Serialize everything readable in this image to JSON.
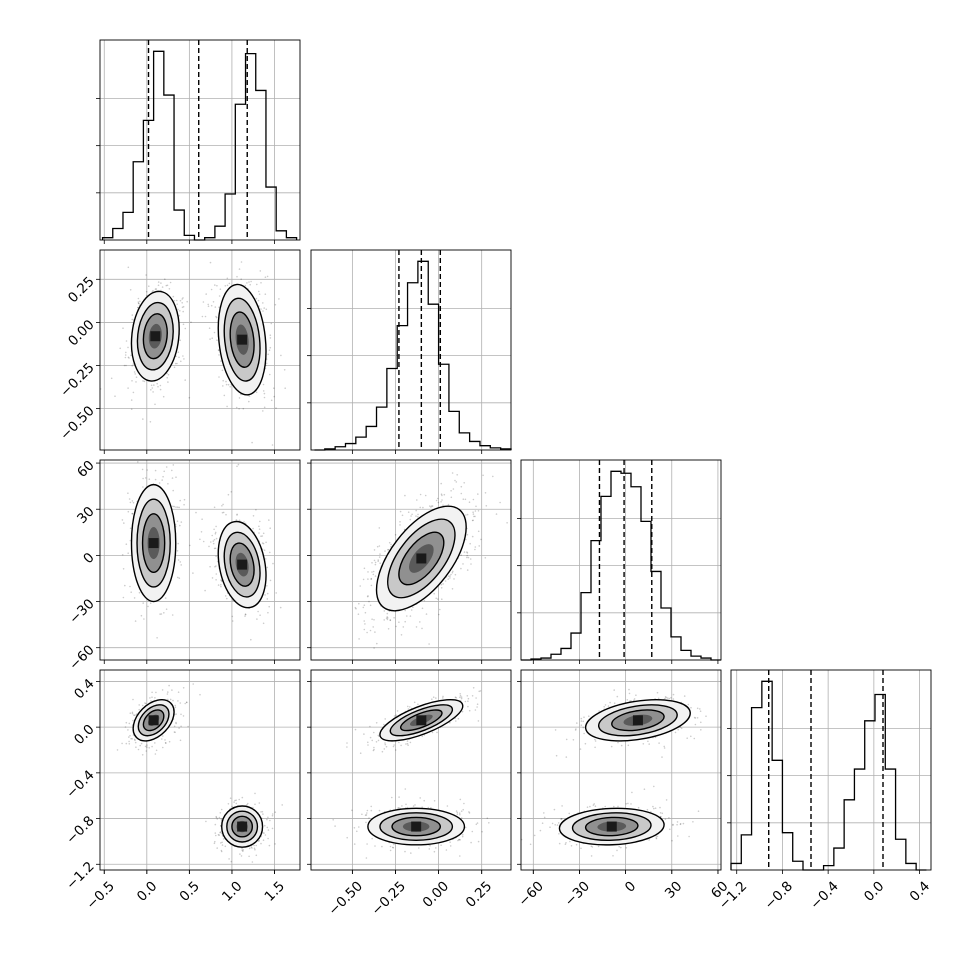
{
  "chart_data": {
    "type": "corner",
    "grid": true,
    "parameters": [
      {
        "range": [
          -0.55,
          1.8
        ],
        "ticks": [
          "-0.5",
          "0.0",
          "0.5",
          "1.0",
          "1.5"
        ],
        "tick_values": [
          -0.5,
          0.0,
          0.5,
          1.0,
          1.5
        ],
        "quantiles": [
          0.02,
          0.61,
          1.18
        ]
      },
      {
        "range": [
          -0.74,
          0.42
        ],
        "ticks": [
          "-0.50",
          "-0.25",
          "0.00",
          "0.25"
        ],
        "tick_values": [
          -0.5,
          -0.25,
          0.0,
          0.25
        ],
        "quantiles": [
          -0.23,
          -0.1,
          0.01
        ]
      },
      {
        "range": [
          -68,
          62
        ],
        "ticks": [
          "-60",
          "-30",
          "0",
          "30",
          "60"
        ],
        "tick_values": [
          -60,
          -30,
          0,
          30,
          60
        ],
        "quantiles": [
          -17,
          -1,
          17
        ]
      },
      {
        "range": [
          -1.25,
          0.5
        ],
        "ticks": [
          "-1.2",
          "-0.8",
          "-0.4",
          "0.0",
          "0.4"
        ],
        "tick_values": [
          -1.2,
          -0.8,
          -0.4,
          0.0,
          0.4
        ],
        "quantiles": [
          -0.92,
          -0.55,
          0.08
        ]
      }
    ],
    "histograms": [
      {
        "bins": [
          -0.52,
          -0.4,
          -0.28,
          -0.16,
          -0.04,
          0.08,
          0.2,
          0.32,
          0.44,
          0.56,
          0.68,
          0.8,
          0.92,
          1.04,
          1.16,
          1.28,
          1.4,
          1.52,
          1.64,
          1.76
        ],
        "counts": [
          0.01,
          0.05,
          0.12,
          0.34,
          0.52,
          0.82,
          0.63,
          0.13,
          0.02,
          0.0,
          0.01,
          0.06,
          0.2,
          0.59,
          0.81,
          0.65,
          0.23,
          0.04,
          0.01
        ]
      },
      {
        "bins": [
          -0.72,
          -0.66,
          -0.6,
          -0.54,
          -0.48,
          -0.42,
          -0.36,
          -0.3,
          -0.24,
          -0.18,
          -0.12,
          -0.06,
          0.0,
          0.06,
          0.12,
          0.18,
          0.24,
          0.3,
          0.36,
          0.42
        ],
        "counts": [
          0.0,
          0.005,
          0.015,
          0.03,
          0.06,
          0.11,
          0.2,
          0.38,
          0.58,
          0.78,
          0.88,
          0.68,
          0.4,
          0.18,
          0.08,
          0.04,
          0.02,
          0.01,
          0.005
        ]
      },
      {
        "bins": [
          -68,
          -61.5,
          -55,
          -48.5,
          -42,
          -35.5,
          -29,
          -22.5,
          -16,
          -9.5,
          -3,
          3.5,
          10,
          16.5,
          23,
          29.5,
          36,
          42.5,
          49,
          55.5,
          62
        ],
        "counts": [
          0.0,
          0.005,
          0.01,
          0.03,
          0.06,
          0.14,
          0.35,
          0.62,
          0.85,
          0.98,
          0.97,
          0.9,
          0.72,
          0.46,
          0.27,
          0.12,
          0.05,
          0.02,
          0.01,
          0.0
        ]
      },
      {
        "bins": [
          -1.25,
          -1.16,
          -1.07,
          -0.98,
          -0.89,
          -0.8,
          -0.71,
          -0.62,
          -0.53,
          -0.44,
          -0.35,
          -0.26,
          -0.17,
          -0.08,
          0.01,
          0.1,
          0.19,
          0.28,
          0.37,
          0.46
        ],
        "counts": [
          0.03,
          0.16,
          0.74,
          0.86,
          0.5,
          0.17,
          0.04,
          0.0,
          0.0,
          0.02,
          0.1,
          0.32,
          0.46,
          0.68,
          0.8,
          0.46,
          0.14,
          0.03,
          0.0
        ]
      }
    ],
    "joint_modes": [
      {
        "row": 1,
        "col": 0,
        "modes": [
          {
            "mx": 0.1,
            "my": -0.08,
            "sx": 0.14,
            "sy": 0.13,
            "rho": 0.15,
            "w": 0.5
          },
          {
            "mx": 1.12,
            "my": -0.1,
            "sx": 0.14,
            "sy": 0.16,
            "rho": -0.2,
            "w": 0.5
          }
        ]
      },
      {
        "row": 2,
        "col": 0,
        "modes": [
          {
            "mx": 0.08,
            "my": 8,
            "sx": 0.13,
            "sy": 19,
            "rho": 0.0,
            "w": 0.5
          },
          {
            "mx": 1.12,
            "my": -6,
            "sx": 0.14,
            "sy": 14,
            "rho": -0.25,
            "w": 0.5
          }
        ]
      },
      {
        "row": 2,
        "col": 1,
        "modes": [
          {
            "mx": -0.1,
            "my": -2,
            "sx": 0.13,
            "sy": 17,
            "rho": 0.6,
            "w": 1.0
          }
        ]
      },
      {
        "row": 3,
        "col": 0,
        "modes": [
          {
            "mx": 0.08,
            "my": 0.06,
            "sx": 0.12,
            "sy": 0.09,
            "rho": 0.4,
            "w": 0.5
          },
          {
            "mx": 1.12,
            "my": -0.87,
            "sx": 0.12,
            "sy": 0.09,
            "rho": 0.0,
            "w": 0.5
          }
        ]
      },
      {
        "row": 3,
        "col": 1,
        "modes": [
          {
            "mx": -0.1,
            "my": 0.06,
            "sx": 0.12,
            "sy": 0.09,
            "rho": 0.7,
            "w": 0.5
          },
          {
            "mx": -0.13,
            "my": -0.87,
            "sx": 0.14,
            "sy": 0.08,
            "rho": 0.0,
            "w": 0.5
          }
        ]
      },
      {
        "row": 3,
        "col": 2,
        "modes": [
          {
            "mx": 8,
            "my": 0.06,
            "sx": 17,
            "sy": 0.09,
            "rho": 0.35,
            "w": 0.5
          },
          {
            "mx": -9,
            "my": -0.87,
            "sx": 17,
            "sy": 0.08,
            "rho": 0.1,
            "w": 0.5
          }
        ]
      }
    ]
  }
}
